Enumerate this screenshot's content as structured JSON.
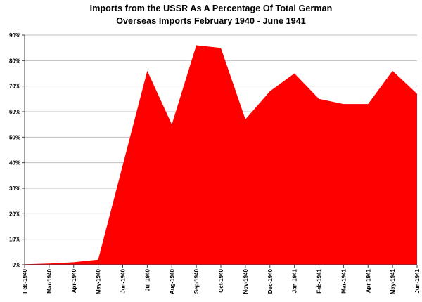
{
  "chart_data": {
    "type": "area",
    "title_lines": [
      "Imports from the USSR As A Percentage Of Total German",
      "Overseas Imports February 1940 - June 1941"
    ],
    "categories": [
      "Feb-1940",
      "Mar-1940",
      "Apr-1940",
      "May-1940",
      "Jun-1940",
      "Jul-1940",
      "Aug-1940",
      "Sep-1940",
      "Oct-1940",
      "Nov-1940",
      "Dec-1940",
      "Jan-1941",
      "Feb-1941",
      "Mar-1941",
      "Apr-1941",
      "May-1941",
      "Jun-1941"
    ],
    "series": [
      {
        "name": "USSR share of total German overseas imports",
        "values": [
          0.2,
          0.5,
          1,
          2,
          39,
          76,
          55,
          86,
          85,
          57,
          68,
          75,
          65,
          63,
          63,
          76,
          67
        ]
      }
    ],
    "unit": "%",
    "y_tick_values": [
      0,
      10,
      20,
      30,
      40,
      50,
      60,
      70,
      80,
      90
    ],
    "y_tick_labels": [
      "0%",
      "10%",
      "20%",
      "30%",
      "40%",
      "50%",
      "60%",
      "70%",
      "80%",
      "90%"
    ],
    "ylim": [
      0,
      90
    ],
    "grid": "horizontal",
    "legend": false,
    "colors": {
      "area": "#FE0000",
      "grid": "#BFBFBF",
      "axis": "#404040",
      "text": "#000000",
      "background": "#FFFFFF"
    }
  }
}
